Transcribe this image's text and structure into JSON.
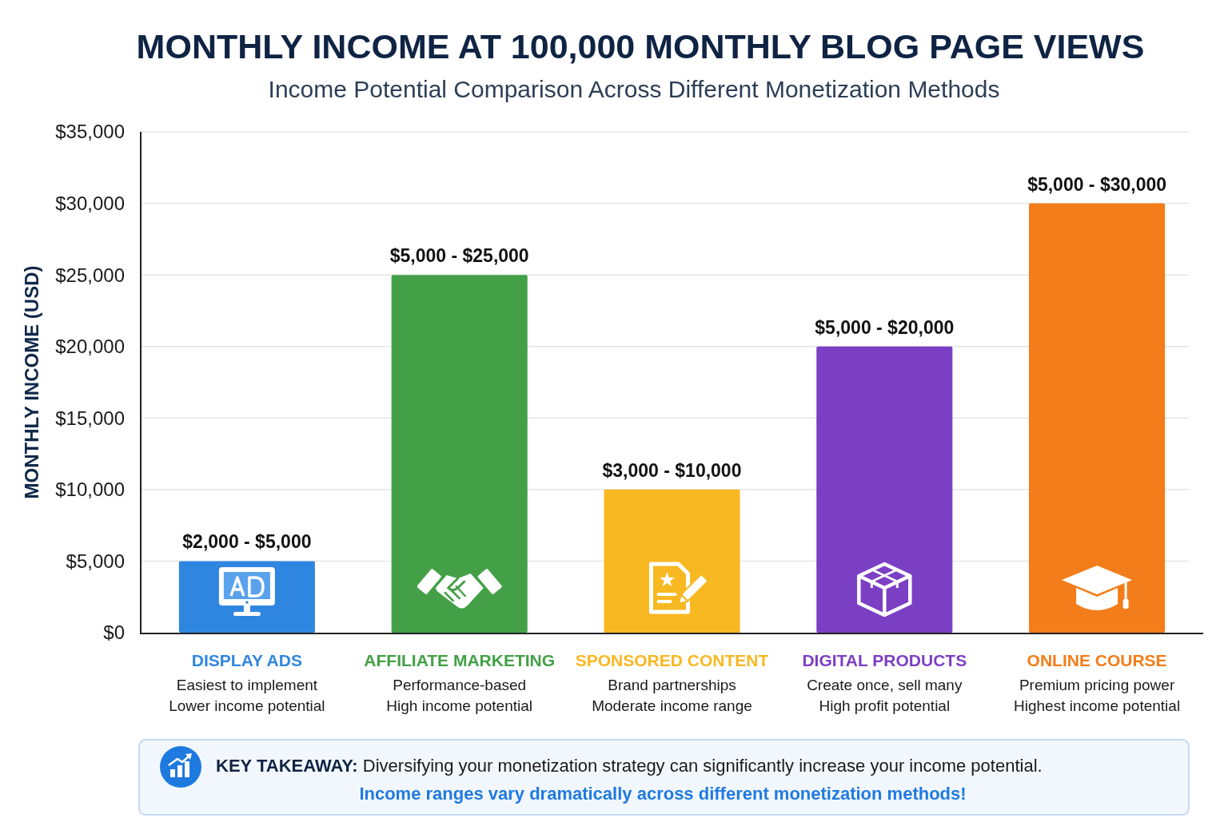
{
  "chart_data": {
    "type": "bar",
    "title": "MONTHLY INCOME AT 100,000 MONTHLY BLOG PAGE VIEWS",
    "subtitle": "Income Potential Comparison Across Different Monetization Methods",
    "ylabel": "MONTHLY INCOME (USD)",
    "categories": [
      "DISPLAY ADS",
      "AFFILIATE MARKETING",
      "SPONSORED CONTENT",
      "DIGITAL PRODUCTS",
      "ONLINE COURSE"
    ],
    "values": [
      5000,
      25000,
      10000,
      20000,
      30000
    ],
    "colors": [
      "#2f86e0",
      "#43a047",
      "#f8b822",
      "#7b3fc4",
      "#f27d1a"
    ],
    "ylim": [
      0,
      35000
    ],
    "yticks": [
      {
        "value": 0,
        "label": "$0"
      },
      {
        "value": 5000,
        "label": "$5,000"
      },
      {
        "value": 10000,
        "label": "$10,000"
      },
      {
        "value": 15000,
        "label": "$15,000"
      },
      {
        "value": 20000,
        "label": "$20,000"
      },
      {
        "value": 25000,
        "label": "$25,000"
      },
      {
        "value": 30000,
        "label": "$30,000"
      },
      {
        "value": 35000,
        "label": "$35,000"
      }
    ],
    "grid": "y",
    "annotations": [
      {
        "text": "$2,000 - $5,000",
        "x": "DISPLAY ADS",
        "y": 5000
      },
      {
        "text": "$5,000 - $25,000",
        "x": "AFFILIATE MARKETING",
        "y": 25000
      },
      {
        "text": "$3,000 - $10,000",
        "x": "SPONSORED CONTENT",
        "y": 10000
      },
      {
        "text": "$5,000 - $20,000",
        "x": "DIGITAL PRODUCTS",
        "y": 20000
      },
      {
        "text": "$5,000 - $30,000",
        "x": "ONLINE COURSE",
        "y": 30000
      },
      "Easiest to implement\nLower income potential",
      "Performance-based\nHigh income potential",
      "Brand partnerships\nModerate income range",
      "Create once, sell many\nHigh profit potential",
      "Premium pricing power\nHighest income potential",
      "KEY TAKEAWAY: Diversifying your monetization strategy can significantly increase your income potential.",
      "Income ranges vary dramatically across different monetization methods!"
    ]
  }
}
